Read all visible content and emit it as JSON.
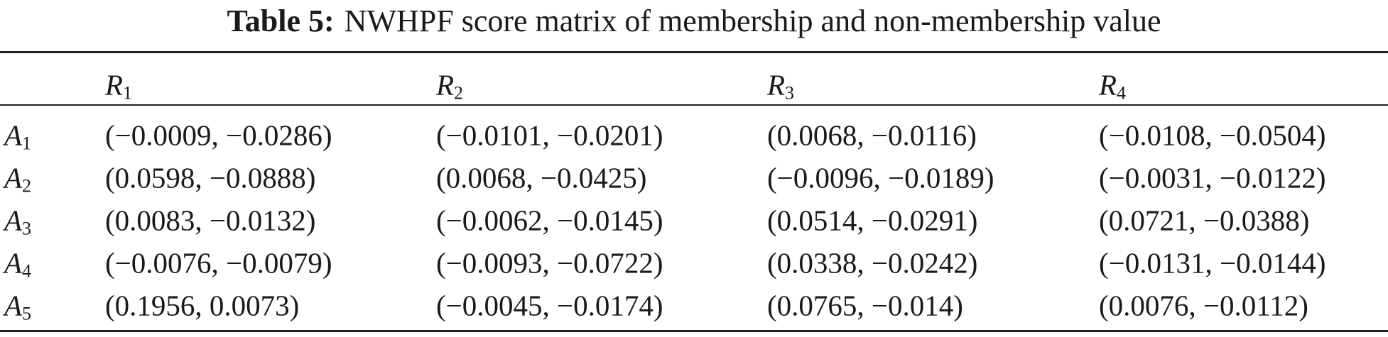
{
  "caption": {
    "label": "Table 5:",
    "text": "NWHPF score matrix of membership and non-membership value"
  },
  "table": {
    "header": [
      {
        "letter": "R",
        "sub": "1"
      },
      {
        "letter": "R",
        "sub": "2"
      },
      {
        "letter": "R",
        "sub": "3"
      },
      {
        "letter": "R",
        "sub": "4"
      }
    ],
    "rows": [
      {
        "label": {
          "letter": "A",
          "sub": "1"
        },
        "cells": [
          "(−0.0009, −0.0286)",
          "(−0.0101, −0.0201)",
          "(0.0068, −0.0116)",
          "(−0.0108, −0.0504)"
        ]
      },
      {
        "label": {
          "letter": "A",
          "sub": "2"
        },
        "cells": [
          "(0.0598, −0.0888)",
          "(0.0068, −0.0425)",
          "(−0.0096, −0.0189)",
          "(−0.0031, −0.0122)"
        ]
      },
      {
        "label": {
          "letter": "A",
          "sub": "3"
        },
        "cells": [
          "(0.0083, −0.0132)",
          "(−0.0062, −0.0145)",
          "(0.0514, −0.0291)",
          "(0.0721, −0.0388)"
        ]
      },
      {
        "label": {
          "letter": "A",
          "sub": "4"
        },
        "cells": [
          "(−0.0076, −0.0079)",
          "(−0.0093, −0.0722)",
          "(0.0338, −0.0242)",
          "(−0.0131, −0.0144)"
        ]
      },
      {
        "label": {
          "letter": "A",
          "sub": "5"
        },
        "cells": [
          "(0.1956, 0.0073)",
          "(−0.0045, −0.0174)",
          "(0.0765, −0.014)",
          "(0.0076, −0.0112)"
        ]
      }
    ]
  }
}
